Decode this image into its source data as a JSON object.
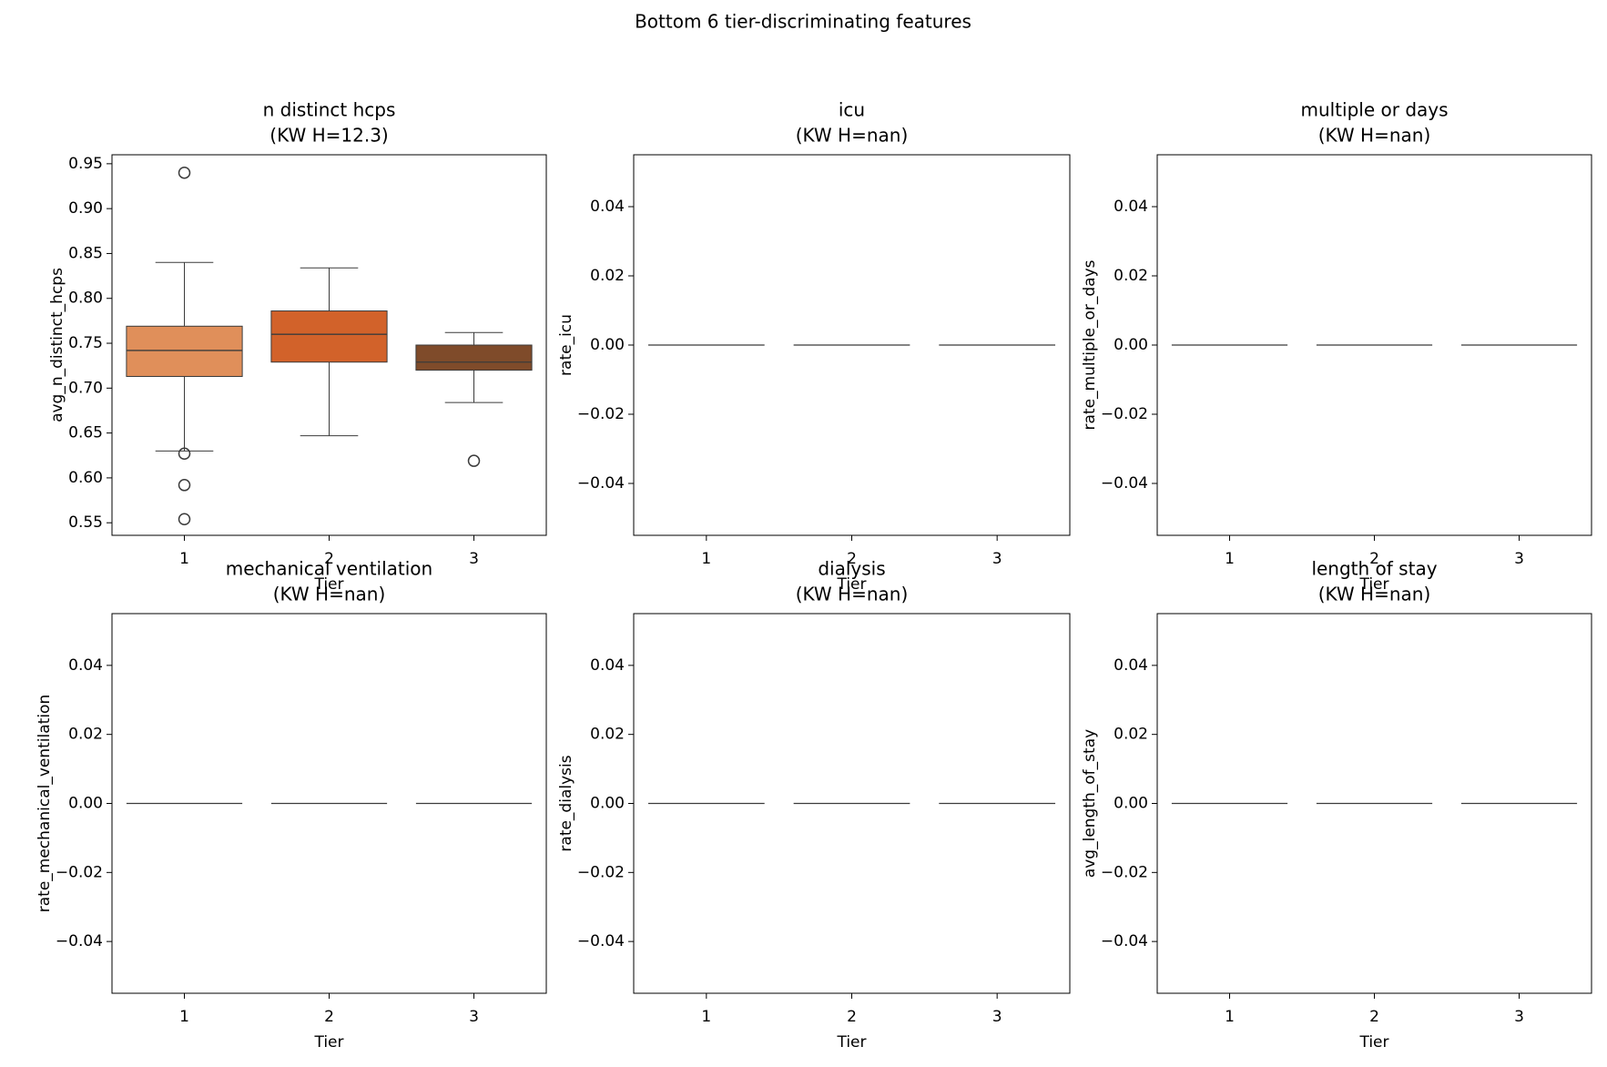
{
  "figure_title": "Bottom 6 tier-discriminating features",
  "chart_data": [
    {
      "type": "box",
      "title": "n distinct hcps",
      "subtitle": "(KW H=12.3)",
      "x_label": "Tier",
      "y_label": "avg_n_distinct_hcps",
      "categories": [
        "1",
        "2",
        "3"
      ],
      "boxes": [
        {
          "color": "#e08f5a",
          "min": 0.63,
          "q1": 0.713,
          "median": 0.742,
          "q3": 0.769,
          "max": 0.84,
          "outliers": [
            0.94,
            0.627,
            0.592,
            0.554
          ]
        },
        {
          "color": "#d2622a",
          "min": 0.647,
          "q1": 0.729,
          "median": 0.76,
          "q3": 0.786,
          "max": 0.834,
          "outliers": []
        },
        {
          "color": "#7f4b2a",
          "min": 0.684,
          "q1": 0.72,
          "median": 0.729,
          "q3": 0.748,
          "max": 0.762,
          "outliers": [
            0.619
          ]
        }
      ],
      "ylim": [
        0.536,
        0.96
      ],
      "yticks": [
        0.55,
        {
          "value": 0.6,
          "label": "0.60"
        },
        0.65,
        {
          "value": 0.7,
          "label": "0.70"
        },
        0.75,
        {
          "value": 0.8,
          "label": "0.80"
        },
        0.85,
        {
          "value": 0.9,
          "label": "0.90"
        },
        0.95
      ]
    },
    {
      "type": "box",
      "title": "icu",
      "subtitle": "(KW H=nan)",
      "x_label": "Tier",
      "y_label": "rate_icu",
      "categories": [
        "1",
        "2",
        "3"
      ],
      "boxes": [
        {
          "min": 0,
          "q1": 0,
          "median": 0,
          "q3": 0,
          "max": 0,
          "outliers": []
        },
        {
          "min": 0,
          "q1": 0,
          "median": 0,
          "q3": 0,
          "max": 0,
          "outliers": []
        },
        {
          "min": 0,
          "q1": 0,
          "median": 0,
          "q3": 0,
          "max": 0,
          "outliers": []
        }
      ],
      "ylim": [
        -0.055,
        0.055
      ],
      "yticks": [
        {
          "value": -0.04,
          "label": "−0.04"
        },
        {
          "value": -0.02,
          "label": "−0.02"
        },
        {
          "value": 0,
          "label": "0.00"
        },
        0.02,
        0.04
      ]
    },
    {
      "type": "box",
      "title": "multiple or days",
      "subtitle": "(KW H=nan)",
      "x_label": "Tier",
      "y_label": "rate_multiple_or_days",
      "categories": [
        "1",
        "2",
        "3"
      ],
      "boxes": [
        {
          "min": 0,
          "q1": 0,
          "median": 0,
          "q3": 0,
          "max": 0,
          "outliers": []
        },
        {
          "min": 0,
          "q1": 0,
          "median": 0,
          "q3": 0,
          "max": 0,
          "outliers": []
        },
        {
          "min": 0,
          "q1": 0,
          "median": 0,
          "q3": 0,
          "max": 0,
          "outliers": []
        }
      ],
      "ylim": [
        -0.055,
        0.055
      ],
      "yticks": [
        {
          "value": -0.04,
          "label": "−0.04"
        },
        {
          "value": -0.02,
          "label": "−0.02"
        },
        {
          "value": 0,
          "label": "0.00"
        },
        0.02,
        0.04
      ]
    },
    {
      "type": "box",
      "title": "mechanical ventilation",
      "subtitle": "(KW H=nan)",
      "x_label": "Tier",
      "y_label": "rate_mechanical_ventilation",
      "categories": [
        "1",
        "2",
        "3"
      ],
      "boxes": [
        {
          "min": 0,
          "q1": 0,
          "median": 0,
          "q3": 0,
          "max": 0,
          "outliers": []
        },
        {
          "min": 0,
          "q1": 0,
          "median": 0,
          "q3": 0,
          "max": 0,
          "outliers": []
        },
        {
          "min": 0,
          "q1": 0,
          "median": 0,
          "q3": 0,
          "max": 0,
          "outliers": []
        }
      ],
      "ylim": [
        -0.055,
        0.055
      ],
      "yticks": [
        {
          "value": -0.04,
          "label": "−0.04"
        },
        {
          "value": -0.02,
          "label": "−0.02"
        },
        {
          "value": 0,
          "label": "0.00"
        },
        0.02,
        0.04
      ]
    },
    {
      "type": "box",
      "title": "dialysis",
      "subtitle": "(KW H=nan)",
      "x_label": "Tier",
      "y_label": "rate_dialysis",
      "categories": [
        "1",
        "2",
        "3"
      ],
      "boxes": [
        {
          "min": 0,
          "q1": 0,
          "median": 0,
          "q3": 0,
          "max": 0,
          "outliers": []
        },
        {
          "min": 0,
          "q1": 0,
          "median": 0,
          "q3": 0,
          "max": 0,
          "outliers": []
        },
        {
          "min": 0,
          "q1": 0,
          "median": 0,
          "q3": 0,
          "max": 0,
          "outliers": []
        }
      ],
      "ylim": [
        -0.055,
        0.055
      ],
      "yticks": [
        {
          "value": -0.04,
          "label": "−0.04"
        },
        {
          "value": -0.02,
          "label": "−0.02"
        },
        {
          "value": 0,
          "label": "0.00"
        },
        0.02,
        0.04
      ]
    },
    {
      "type": "box",
      "title": "length of stay",
      "subtitle": "(KW H=nan)",
      "x_label": "Tier",
      "y_label": "avg_length_of_stay",
      "categories": [
        "1",
        "2",
        "3"
      ],
      "boxes": [
        {
          "min": 0,
          "q1": 0,
          "median": 0,
          "q3": 0,
          "max": 0,
          "outliers": []
        },
        {
          "min": 0,
          "q1": 0,
          "median": 0,
          "q3": 0,
          "max": 0,
          "outliers": []
        },
        {
          "min": 0,
          "q1": 0,
          "median": 0,
          "q3": 0,
          "max": 0,
          "outliers": []
        }
      ],
      "ylim": [
        -0.055,
        0.055
      ],
      "yticks": [
        {
          "value": -0.04,
          "label": "−0.04"
        },
        {
          "value": -0.02,
          "label": "−0.02"
        },
        {
          "value": 0,
          "label": "0.00"
        },
        0.02,
        0.04
      ]
    }
  ]
}
